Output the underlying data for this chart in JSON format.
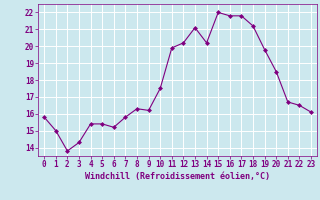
{
  "x": [
    0,
    1,
    2,
    3,
    4,
    5,
    6,
    7,
    8,
    9,
    10,
    11,
    12,
    13,
    14,
    15,
    16,
    17,
    18,
    19,
    20,
    21,
    22,
    23
  ],
  "y": [
    15.8,
    15.0,
    13.8,
    14.3,
    15.4,
    15.4,
    15.2,
    15.8,
    16.3,
    16.2,
    17.5,
    19.9,
    20.2,
    21.1,
    20.2,
    22.0,
    21.8,
    21.8,
    21.2,
    19.8,
    18.5,
    16.7,
    16.5,
    16.1
  ],
  "xlim": [
    -0.5,
    23.5
  ],
  "ylim": [
    13.5,
    22.5
  ],
  "yticks": [
    14,
    15,
    16,
    17,
    18,
    19,
    20,
    21,
    22
  ],
  "xticks": [
    0,
    1,
    2,
    3,
    4,
    5,
    6,
    7,
    8,
    9,
    10,
    11,
    12,
    13,
    14,
    15,
    16,
    17,
    18,
    19,
    20,
    21,
    22,
    23
  ],
  "xlabel": "Windchill (Refroidissement éolien,°C)",
  "line_color": "#800080",
  "marker": "D",
  "marker_size": 2,
  "bg_color": "#cce8ee",
  "grid_color": "#ffffff",
  "tick_color": "#800080",
  "label_color": "#800080",
  "tick_fontsize": 5.5,
  "xlabel_fontsize": 6.0
}
